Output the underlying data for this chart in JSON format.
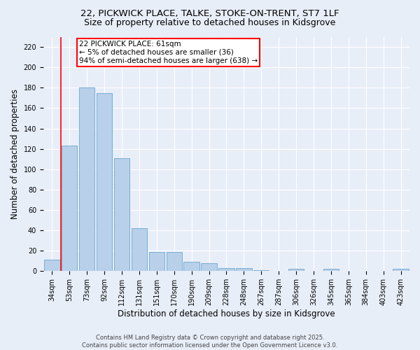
{
  "title_line1": "22, PICKWICK PLACE, TALKE, STOKE-ON-TRENT, ST7 1LF",
  "title_line2": "Size of property relative to detached houses in Kidsgrove",
  "xlabel": "Distribution of detached houses by size in Kidsgrove",
  "ylabel": "Number of detached properties",
  "categories": [
    "34sqm",
    "53sqm",
    "73sqm",
    "92sqm",
    "112sqm",
    "131sqm",
    "151sqm",
    "170sqm",
    "190sqm",
    "209sqm",
    "228sqm",
    "248sqm",
    "267sqm",
    "287sqm",
    "306sqm",
    "326sqm",
    "345sqm",
    "365sqm",
    "384sqm",
    "403sqm",
    "423sqm"
  ],
  "values": [
    11,
    123,
    180,
    175,
    111,
    42,
    19,
    19,
    9,
    8,
    3,
    3,
    1,
    0,
    2,
    0,
    2,
    0,
    0,
    0,
    2
  ],
  "bar_color": "#b8d0ea",
  "bar_edge_color": "#7aadd4",
  "vline_color": "red",
  "vline_x": 1.0,
  "annotation_text": "22 PICKWICK PLACE: 61sqm\n← 5% of detached houses are smaller (36)\n94% of semi-detached houses are larger (638) →",
  "annotation_box_color": "white",
  "annotation_box_edge_color": "red",
  "ylim": [
    0,
    230
  ],
  "yticks": [
    0,
    20,
    40,
    60,
    80,
    100,
    120,
    140,
    160,
    180,
    200,
    220
  ],
  "background_color": "#e8eef8",
  "grid_color": "white",
  "footnote": "Contains HM Land Registry data © Crown copyright and database right 2025.\nContains public sector information licensed under the Open Government Licence v3.0.",
  "title_fontsize": 9.5,
  "subtitle_fontsize": 9,
  "tick_fontsize": 7,
  "ylabel_fontsize": 8.5,
  "xlabel_fontsize": 8.5,
  "footnote_fontsize": 6,
  "annotation_fontsize": 7.5
}
